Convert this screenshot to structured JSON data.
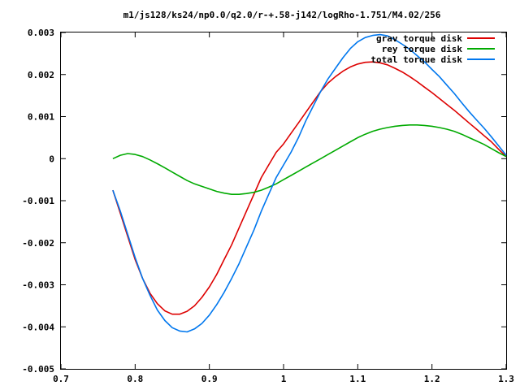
{
  "chart_data": {
    "type": "line",
    "title": "m1/js128/ks24/np0.0/q2.0/r-+.58-j142/logRho-1.751/M4.02/256",
    "xlabel": "",
    "ylabel": "",
    "xlim": [
      0.7,
      1.3
    ],
    "ylim": [
      -0.005,
      0.003
    ],
    "grid": false,
    "legend_position": "top-right",
    "x_ticks": [
      {
        "value": 0.7,
        "label": "0.7"
      },
      {
        "value": 0.8,
        "label": "0.8"
      },
      {
        "value": 0.9,
        "label": "0.9"
      },
      {
        "value": 1.0,
        "label": "1"
      },
      {
        "value": 1.1,
        "label": "1.1"
      },
      {
        "value": 1.2,
        "label": "1.2"
      },
      {
        "value": 1.3,
        "label": "1.3"
      }
    ],
    "y_ticks": [
      {
        "value": 0.003,
        "label": "0.003"
      },
      {
        "value": 0.002,
        "label": "0.002"
      },
      {
        "value": 0.001,
        "label": "0.001"
      },
      {
        "value": 0.0,
        "label": "0"
      },
      {
        "value": -0.001,
        "label": "-0.001"
      },
      {
        "value": -0.002,
        "label": "-0.002"
      },
      {
        "value": -0.003,
        "label": "-0.003"
      },
      {
        "value": -0.004,
        "label": "-0.004"
      },
      {
        "value": -0.005,
        "label": "-0.005"
      }
    ],
    "series": [
      {
        "name": "grav torque disk",
        "color": "#dd0000",
        "x": [
          0.77,
          0.78,
          0.79,
          0.8,
          0.81,
          0.82,
          0.83,
          0.84,
          0.85,
          0.86,
          0.87,
          0.88,
          0.89,
          0.9,
          0.91,
          0.92,
          0.93,
          0.94,
          0.95,
          0.96,
          0.97,
          0.98,
          0.99,
          1.0,
          1.01,
          1.02,
          1.03,
          1.04,
          1.05,
          1.06,
          1.07,
          1.08,
          1.09,
          1.1,
          1.11,
          1.12,
          1.13,
          1.14,
          1.15,
          1.16,
          1.17,
          1.18,
          1.19,
          1.2,
          1.21,
          1.22,
          1.23,
          1.24,
          1.25,
          1.26,
          1.27,
          1.28,
          1.29,
          1.3
        ],
        "y": [
          -0.00075,
          -0.0013,
          -0.00185,
          -0.0024,
          -0.00285,
          -0.0032,
          -0.00345,
          -0.00362,
          -0.0037,
          -0.0037,
          -0.00363,
          -0.0035,
          -0.0033,
          -0.00305,
          -0.00275,
          -0.0024,
          -0.00205,
          -0.00165,
          -0.00125,
          -0.00085,
          -0.00045,
          -0.00015,
          0.00015,
          0.00035,
          0.0006,
          0.00085,
          0.0011,
          0.00135,
          0.0016,
          0.0018,
          0.00195,
          0.00208,
          0.00218,
          0.00225,
          0.00229,
          0.0023,
          0.00228,
          0.00223,
          0.00215,
          0.00206,
          0.00195,
          0.00183,
          0.0017,
          0.00157,
          0.00143,
          0.00129,
          0.00115,
          0.001,
          0.00085,
          0.0007,
          0.00055,
          0.0004,
          0.00022,
          5e-05
        ]
      },
      {
        "name": "rey torque disk",
        "color": "#00aa00",
        "x": [
          0.77,
          0.78,
          0.79,
          0.8,
          0.81,
          0.82,
          0.83,
          0.84,
          0.85,
          0.86,
          0.87,
          0.88,
          0.89,
          0.9,
          0.91,
          0.92,
          0.93,
          0.94,
          0.95,
          0.96,
          0.97,
          0.98,
          0.99,
          1.0,
          1.01,
          1.02,
          1.03,
          1.04,
          1.05,
          1.06,
          1.07,
          1.08,
          1.09,
          1.1,
          1.11,
          1.12,
          1.13,
          1.14,
          1.15,
          1.16,
          1.17,
          1.18,
          1.19,
          1.2,
          1.21,
          1.22,
          1.23,
          1.24,
          1.25,
          1.26,
          1.27,
          1.28,
          1.29,
          1.3
        ],
        "y": [
          0.0,
          8e-05,
          0.00012,
          0.0001,
          5e-05,
          -3e-05,
          -0.00012,
          -0.00022,
          -0.00032,
          -0.00042,
          -0.00052,
          -0.0006,
          -0.00066,
          -0.00072,
          -0.00078,
          -0.00082,
          -0.00085,
          -0.00085,
          -0.00083,
          -0.0008,
          -0.00075,
          -0.00068,
          -0.0006,
          -0.0005,
          -0.0004,
          -0.0003,
          -0.0002,
          -0.0001,
          0.0,
          0.0001,
          0.0002,
          0.0003,
          0.0004,
          0.0005,
          0.00058,
          0.00065,
          0.0007,
          0.00074,
          0.00077,
          0.00079,
          0.0008,
          0.0008,
          0.00079,
          0.00077,
          0.00074,
          0.0007,
          0.00065,
          0.00058,
          0.0005,
          0.00042,
          0.00034,
          0.00024,
          0.00014,
          5e-05
        ]
      },
      {
        "name": "total torque disk",
        "color": "#0077ee",
        "x": [
          0.77,
          0.78,
          0.79,
          0.8,
          0.81,
          0.82,
          0.83,
          0.84,
          0.85,
          0.86,
          0.87,
          0.88,
          0.89,
          0.9,
          0.91,
          0.92,
          0.93,
          0.94,
          0.95,
          0.96,
          0.97,
          0.98,
          0.99,
          1.0,
          1.01,
          1.02,
          1.03,
          1.04,
          1.05,
          1.06,
          1.07,
          1.08,
          1.09,
          1.1,
          1.11,
          1.12,
          1.13,
          1.14,
          1.15,
          1.16,
          1.17,
          1.18,
          1.19,
          1.2,
          1.21,
          1.22,
          1.23,
          1.24,
          1.25,
          1.26,
          1.27,
          1.28,
          1.29,
          1.3
        ],
        "y": [
          -0.00075,
          -0.00125,
          -0.0018,
          -0.00235,
          -0.00285,
          -0.00325,
          -0.0036,
          -0.00385,
          -0.00402,
          -0.0041,
          -0.00412,
          -0.00405,
          -0.00392,
          -0.00372,
          -0.00347,
          -0.00318,
          -0.00285,
          -0.0025,
          -0.0021,
          -0.0017,
          -0.00125,
          -0.00085,
          -0.00045,
          -0.00015,
          0.00015,
          0.0005,
          0.0009,
          0.00125,
          0.0016,
          0.0019,
          0.00215,
          0.0024,
          0.00262,
          0.00278,
          0.00288,
          0.00293,
          0.00295,
          0.00292,
          0.00283,
          0.00272,
          0.0026,
          0.00245,
          0.0023,
          0.00212,
          0.00195,
          0.00175,
          0.00155,
          0.00133,
          0.00112,
          0.00092,
          0.00073,
          0.00052,
          0.0003,
          8e-05
        ]
      }
    ]
  }
}
